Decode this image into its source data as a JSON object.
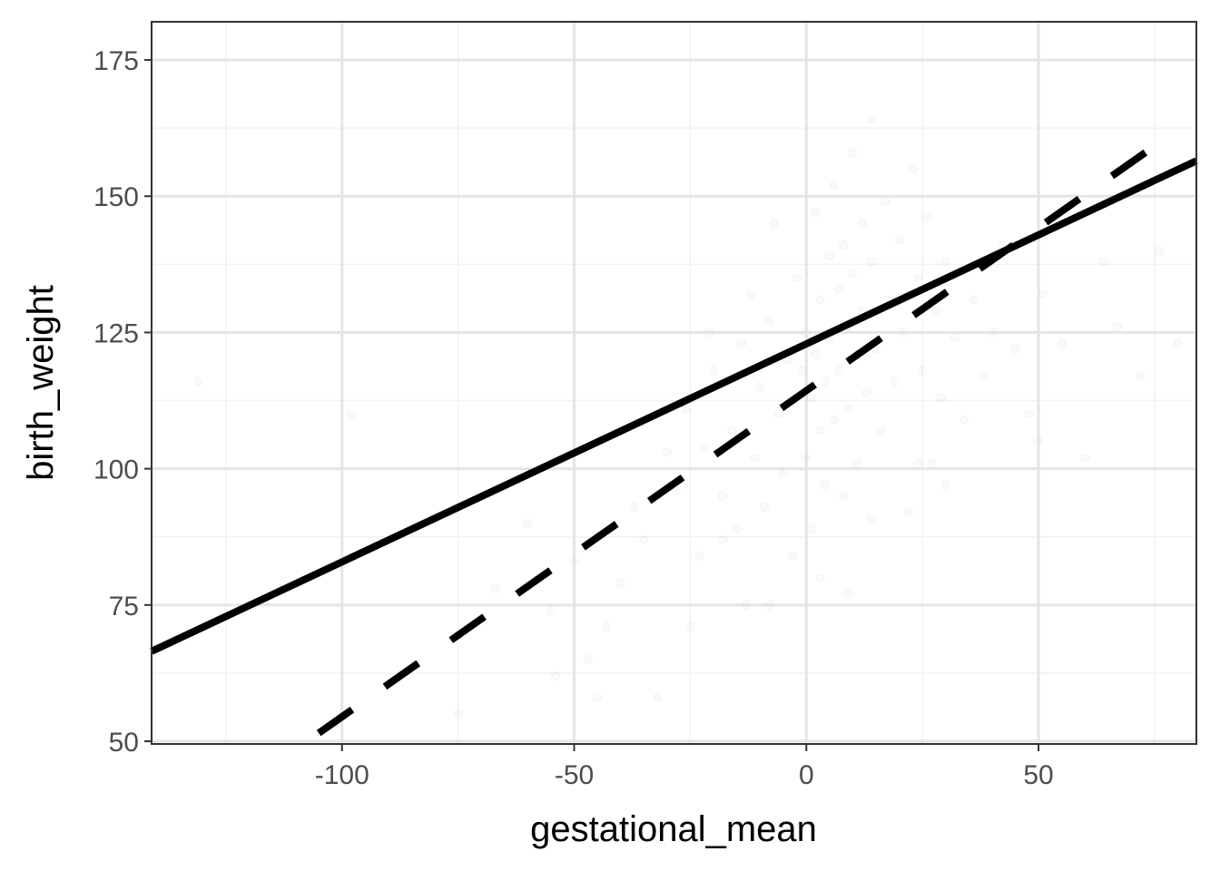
{
  "chart_data": {
    "type": "scatter",
    "title": "",
    "xlabel": "gestational_mean",
    "ylabel": "birth_weight",
    "xlim": [
      -141,
      84
    ],
    "ylim": [
      49.5,
      182
    ],
    "x_ticks": [
      -100,
      -50,
      0,
      50
    ],
    "x_tick_labels": [
      "-100",
      "-50",
      "0",
      "50"
    ],
    "y_ticks": [
      50,
      75,
      100,
      125,
      150,
      175
    ],
    "y_tick_labels": [
      "50",
      "75",
      "100",
      "125",
      "150",
      "175"
    ],
    "x_minor_ticks": [
      -125,
      -75,
      -25,
      25,
      75
    ],
    "y_minor_ticks": [
      62.5,
      87.5,
      112.5,
      137.5,
      162.5
    ],
    "grid": true,
    "theme": "bw",
    "legend": "none",
    "colors": {
      "points": "#bfbfbf",
      "lines": "#000000",
      "grid_major": "#e5e5e5",
      "grid_minor": "#f2f2f2",
      "panel_border": "#333333"
    },
    "lines": [
      {
        "style": "solid",
        "x": [
          -141,
          84
        ],
        "y": [
          66.5,
          156.5
        ]
      },
      {
        "style": "dashed",
        "x": [
          -105,
          78
        ],
        "y": [
          51.5,
          161.0
        ]
      }
    ],
    "points": {
      "opacity": 0.08,
      "data": [
        [
          -131,
          116
        ],
        [
          -98,
          110
        ],
        [
          -75,
          55
        ],
        [
          -67,
          78
        ],
        [
          -65,
          97
        ],
        [
          -60,
          90
        ],
        [
          -55,
          74
        ],
        [
          -54,
          62
        ],
        [
          -50,
          83
        ],
        [
          -47,
          65
        ],
        [
          -45,
          58
        ],
        [
          -43,
          71
        ],
        [
          -40,
          79
        ],
        [
          -37,
          93
        ],
        [
          -35,
          87
        ],
        [
          -32,
          58
        ],
        [
          -30,
          103
        ],
        [
          -28,
          96
        ],
        [
          -26,
          111
        ],
        [
          -25,
          71
        ],
        [
          -23,
          84
        ],
        [
          -21,
          125
        ],
        [
          -20,
          118
        ],
        [
          -18,
          95
        ],
        [
          -16,
          107
        ],
        [
          -15,
          89
        ],
        [
          -14,
          123
        ],
        [
          -13,
          75
        ],
        [
          -12,
          132
        ],
        [
          -11,
          102
        ],
        [
          -10,
          115
        ],
        [
          -9,
          93
        ],
        [
          -8,
          127
        ],
        [
          -7,
          145
        ],
        [
          -6,
          110
        ],
        [
          -5,
          99
        ],
        [
          -4,
          120
        ],
        [
          -3,
          84
        ],
        [
          -2,
          135
        ],
        [
          -1,
          118
        ],
        [
          0,
          102
        ],
        [
          0,
          125
        ],
        [
          1,
          113
        ],
        [
          1,
          89
        ],
        [
          2,
          147
        ],
        [
          2,
          121
        ],
        [
          3,
          107
        ],
        [
          3,
          131
        ],
        [
          4,
          97
        ],
        [
          4,
          116
        ],
        [
          5,
          139
        ],
        [
          5,
          124
        ],
        [
          6,
          109
        ],
        [
          6,
          152
        ],
        [
          7,
          133
        ],
        [
          7,
          118
        ],
        [
          8,
          95
        ],
        [
          8,
          141
        ],
        [
          9,
          126
        ],
        [
          9,
          111
        ],
        [
          10,
          158
        ],
        [
          10,
          136
        ],
        [
          11,
          121
        ],
        [
          11,
          101
        ],
        [
          12,
          145
        ],
        [
          12,
          129
        ],
        [
          13,
          114
        ],
        [
          14,
          164
        ],
        [
          14,
          138
        ],
        [
          15,
          122
        ],
        [
          16,
          107
        ],
        [
          17,
          149
        ],
        [
          18,
          131
        ],
        [
          19,
          116
        ],
        [
          20,
          142
        ],
        [
          21,
          125
        ],
        [
          22,
          92
        ],
        [
          23,
          155
        ],
        [
          24,
          135
        ],
        [
          25,
          118
        ],
        [
          26,
          146
        ],
        [
          27,
          101
        ],
        [
          28,
          129
        ],
        [
          29,
          113
        ],
        [
          30,
          138
        ],
        [
          32,
          124
        ],
        [
          34,
          109
        ],
        [
          36,
          131
        ],
        [
          38,
          117
        ],
        [
          40,
          125
        ],
        [
          42,
          141
        ],
        [
          45,
          122
        ],
        [
          48,
          110
        ],
        [
          50,
          105
        ],
        [
          51,
          132
        ],
        [
          55,
          123
        ],
        [
          60,
          102
        ],
        [
          64,
          138
        ],
        [
          67,
          126
        ],
        [
          72,
          117
        ],
        [
          76,
          140
        ],
        [
          80,
          123
        ],
        [
          -18,
          87
        ],
        [
          -8,
          75
        ],
        [
          3,
          80
        ],
        [
          9,
          77
        ],
        [
          14,
          91
        ],
        [
          -22,
          104
        ],
        [
          24,
          101
        ],
        [
          30,
          97
        ]
      ]
    }
  }
}
